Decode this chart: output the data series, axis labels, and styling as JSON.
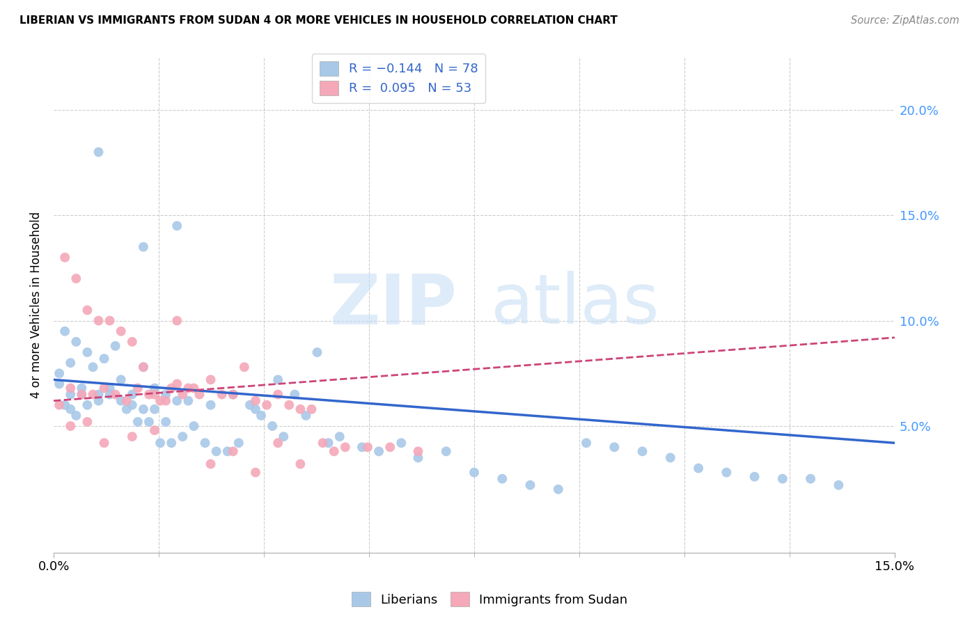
{
  "title": "LIBERIAN VS IMMIGRANTS FROM SUDAN 4 OR MORE VEHICLES IN HOUSEHOLD CORRELATION CHART",
  "source": "Source: ZipAtlas.com",
  "ylabel": "4 or more Vehicles in Household",
  "y_ticks": [
    "5.0%",
    "10.0%",
    "15.0%",
    "20.0%"
  ],
  "y_tick_vals": [
    0.05,
    0.1,
    0.15,
    0.2
  ],
  "x_range": [
    0.0,
    0.15
  ],
  "y_range": [
    -0.01,
    0.225
  ],
  "lib_color": "#a8c8e8",
  "sud_color": "#f4a8b8",
  "lib_line_color": "#3366cc",
  "sud_line_color": "#cc4477",
  "lib_trend_x": [
    0.0,
    0.15
  ],
  "lib_trend_y": [
    0.072,
    0.042
  ],
  "sud_trend_x": [
    0.0,
    0.15
  ],
  "sud_trend_y": [
    0.062,
    0.092
  ],
  "lib_scatter_x": [
    0.008,
    0.022,
    0.016,
    0.002,
    0.004,
    0.006,
    0.003,
    0.001,
    0.001,
    0.005,
    0.008,
    0.01,
    0.012,
    0.014,
    0.016,
    0.018,
    0.02,
    0.022,
    0.003,
    0.005,
    0.007,
    0.009,
    0.011,
    0.013,
    0.015,
    0.017,
    0.019,
    0.021,
    0.023,
    0.025,
    0.027,
    0.029,
    0.031,
    0.033,
    0.035,
    0.037,
    0.039,
    0.041,
    0.043,
    0.045,
    0.047,
    0.049,
    0.051,
    0.055,
    0.058,
    0.062,
    0.065,
    0.07,
    0.075,
    0.08,
    0.085,
    0.09,
    0.095,
    0.1,
    0.105,
    0.11,
    0.115,
    0.12,
    0.125,
    0.13,
    0.135,
    0.14,
    0.002,
    0.003,
    0.004,
    0.006,
    0.008,
    0.01,
    0.012,
    0.014,
    0.016,
    0.018,
    0.02,
    0.024,
    0.028,
    0.032,
    0.036,
    0.04
  ],
  "lib_scatter_y": [
    0.18,
    0.145,
    0.135,
    0.095,
    0.09,
    0.085,
    0.08,
    0.075,
    0.07,
    0.065,
    0.065,
    0.068,
    0.072,
    0.06,
    0.078,
    0.058,
    0.052,
    0.062,
    0.065,
    0.068,
    0.078,
    0.082,
    0.088,
    0.058,
    0.052,
    0.052,
    0.042,
    0.042,
    0.045,
    0.05,
    0.042,
    0.038,
    0.038,
    0.042,
    0.06,
    0.055,
    0.05,
    0.045,
    0.065,
    0.055,
    0.085,
    0.042,
    0.045,
    0.04,
    0.038,
    0.042,
    0.035,
    0.038,
    0.028,
    0.025,
    0.022,
    0.02,
    0.042,
    0.04,
    0.038,
    0.035,
    0.03,
    0.028,
    0.026,
    0.025,
    0.025,
    0.022,
    0.06,
    0.058,
    0.055,
    0.06,
    0.062,
    0.065,
    0.062,
    0.065,
    0.058,
    0.068,
    0.065,
    0.062,
    0.06,
    0.065,
    0.058,
    0.072
  ],
  "sud_scatter_x": [
    0.002,
    0.004,
    0.006,
    0.008,
    0.01,
    0.012,
    0.014,
    0.016,
    0.018,
    0.02,
    0.022,
    0.024,
    0.026,
    0.028,
    0.03,
    0.032,
    0.034,
    0.036,
    0.038,
    0.04,
    0.042,
    0.044,
    0.046,
    0.048,
    0.05,
    0.052,
    0.056,
    0.06,
    0.065,
    0.001,
    0.003,
    0.005,
    0.007,
    0.009,
    0.011,
    0.013,
    0.015,
    0.017,
    0.019,
    0.021,
    0.023,
    0.025,
    0.028,
    0.032,
    0.036,
    0.04,
    0.044,
    0.022,
    0.018,
    0.014,
    0.009,
    0.006,
    0.003
  ],
  "sud_scatter_y": [
    0.13,
    0.12,
    0.105,
    0.1,
    0.1,
    0.095,
    0.09,
    0.078,
    0.065,
    0.062,
    0.07,
    0.068,
    0.065,
    0.072,
    0.065,
    0.065,
    0.078,
    0.062,
    0.06,
    0.065,
    0.06,
    0.058,
    0.058,
    0.042,
    0.038,
    0.04,
    0.04,
    0.04,
    0.038,
    0.06,
    0.068,
    0.065,
    0.065,
    0.068,
    0.065,
    0.062,
    0.068,
    0.065,
    0.062,
    0.068,
    0.065,
    0.068,
    0.032,
    0.038,
    0.028,
    0.042,
    0.032,
    0.1,
    0.048,
    0.045,
    0.042,
    0.052,
    0.05
  ]
}
